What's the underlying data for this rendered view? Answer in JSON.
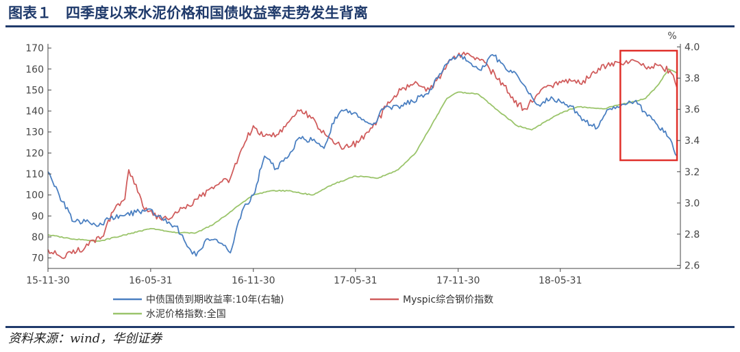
{
  "header": {
    "title": "图表１　四季度以来水泥价格和国债收益率走势发生背离"
  },
  "footer": {
    "source": "资料来源：wind，华创证券"
  },
  "chart_data": {
    "type": "line",
    "title": "",
    "x_ticks": [
      "15-11-30",
      "16-05-31",
      "16-11-30",
      "17-05-31",
      "17-11-30",
      "18-05-31"
    ],
    "left_axis": {
      "ylim": [
        65,
        172
      ],
      "ticks": [
        70,
        80,
        90,
        100,
        110,
        120,
        130,
        140,
        150,
        160,
        170
      ]
    },
    "right_axis": {
      "unit": "%",
      "ylim": [
        2.58,
        4.02
      ],
      "ticks": [
        "2.6",
        "2.8",
        "3.0",
        "3.2",
        "3.4",
        "3.6",
        "3.8",
        "4.0"
      ]
    },
    "legend_placement": "bottom",
    "grid": false,
    "highlight_box": {
      "color": "#e0302a",
      "x_range": [
        "2018-09-15",
        "2018-12-25"
      ]
    },
    "series": [
      {
        "name": "中债国债到期收益率:10年(右轴)",
        "axis": "right",
        "color": "#4a7fc1",
        "points": [
          [
            "2015-11-30",
            3.2
          ],
          [
            "2015-12-20",
            3.05
          ],
          [
            "2016-01-15",
            2.88
          ],
          [
            "2016-02-05",
            2.88
          ],
          [
            "2016-02-25",
            2.85
          ],
          [
            "2016-03-20",
            2.9
          ],
          [
            "2016-04-15",
            2.92
          ],
          [
            "2016-05-05",
            2.94
          ],
          [
            "2016-05-31",
            2.96
          ],
          [
            "2016-06-20",
            2.9
          ],
          [
            "2016-07-15",
            2.85
          ],
          [
            "2016-08-10",
            2.7
          ],
          [
            "2016-08-20",
            2.66
          ],
          [
            "2016-09-10",
            2.77
          ],
          [
            "2016-10-05",
            2.74
          ],
          [
            "2016-10-20",
            2.68
          ],
          [
            "2016-11-10",
            2.95
          ],
          [
            "2016-11-30",
            3.05
          ],
          [
            "2016-12-20",
            3.3
          ],
          [
            "2017-01-10",
            3.22
          ],
          [
            "2017-02-01",
            3.3
          ],
          [
            "2017-02-20",
            3.42
          ],
          [
            "2017-03-15",
            3.4
          ],
          [
            "2017-04-05",
            3.35
          ],
          [
            "2017-04-25",
            3.55
          ],
          [
            "2017-05-15",
            3.6
          ],
          [
            "2017-06-05",
            3.55
          ],
          [
            "2017-06-30",
            3.5
          ],
          [
            "2017-07-20",
            3.6
          ],
          [
            "2017-08-15",
            3.62
          ],
          [
            "2017-09-10",
            3.65
          ],
          [
            "2017-10-05",
            3.7
          ],
          [
            "2017-10-25",
            3.8
          ],
          [
            "2017-11-15",
            3.92
          ],
          [
            "2017-11-30",
            3.95
          ],
          [
            "2017-12-20",
            3.9
          ],
          [
            "2018-01-10",
            3.85
          ],
          [
            "2018-01-30",
            3.95
          ],
          [
            "2018-02-20",
            3.88
          ],
          [
            "2018-03-15",
            3.82
          ],
          [
            "2018-04-05",
            3.7
          ],
          [
            "2018-04-25",
            3.62
          ],
          [
            "2018-05-15",
            3.68
          ],
          [
            "2018-05-31",
            3.65
          ],
          [
            "2018-06-20",
            3.62
          ],
          [
            "2018-07-15",
            3.52
          ],
          [
            "2018-08-05",
            3.48
          ],
          [
            "2018-08-25",
            3.6
          ],
          [
            "2018-09-15",
            3.62
          ],
          [
            "2018-10-10",
            3.65
          ],
          [
            "2018-10-30",
            3.58
          ],
          [
            "2018-11-20",
            3.5
          ],
          [
            "2018-12-10",
            3.42
          ],
          [
            "2018-12-25",
            3.3
          ]
        ]
      },
      {
        "name": "Myspic综合钢价指数",
        "axis": "left",
        "color": "#d05c5c",
        "points": [
          [
            "2015-11-30",
            74
          ],
          [
            "2015-12-25",
            70
          ],
          [
            "2016-01-20",
            73
          ],
          [
            "2016-02-10",
            76
          ],
          [
            "2016-03-05",
            80
          ],
          [
            "2016-03-25",
            92
          ],
          [
            "2016-04-15",
            98
          ],
          [
            "2016-04-22",
            112
          ],
          [
            "2016-05-05",
            105
          ],
          [
            "2016-05-20",
            93
          ],
          [
            "2016-06-20",
            88
          ],
          [
            "2016-07-20",
            92
          ],
          [
            "2016-08-20",
            98
          ],
          [
            "2016-09-20",
            103
          ],
          [
            "2016-10-20",
            108
          ],
          [
            "2016-11-15",
            125
          ],
          [
            "2016-11-30",
            133
          ],
          [
            "2016-12-20",
            128
          ],
          [
            "2017-01-20",
            130
          ],
          [
            "2017-02-20",
            140
          ],
          [
            "2017-03-10",
            138
          ],
          [
            "2017-04-10",
            128
          ],
          [
            "2017-05-10",
            122
          ],
          [
            "2017-06-05",
            125
          ],
          [
            "2017-06-30",
            132
          ],
          [
            "2017-07-25",
            142
          ],
          [
            "2017-08-20",
            150
          ],
          [
            "2017-09-15",
            154
          ],
          [
            "2017-10-10",
            150
          ],
          [
            "2017-11-01",
            158
          ],
          [
            "2017-11-20",
            165
          ],
          [
            "2017-12-10",
            168
          ],
          [
            "2018-01-05",
            165
          ],
          [
            "2018-01-25",
            160
          ],
          [
            "2018-02-20",
            152
          ],
          [
            "2018-03-10",
            144
          ],
          [
            "2018-03-30",
            141
          ],
          [
            "2018-04-20",
            148
          ],
          [
            "2018-05-15",
            152
          ],
          [
            "2018-06-10",
            155
          ],
          [
            "2018-07-05",
            153
          ],
          [
            "2018-08-01",
            158
          ],
          [
            "2018-08-25",
            163
          ],
          [
            "2018-09-20",
            162
          ],
          [
            "2018-10-10",
            164
          ],
          [
            "2018-11-01",
            160
          ],
          [
            "2018-11-25",
            162
          ],
          [
            "2018-12-15",
            158
          ],
          [
            "2018-12-25",
            151
          ]
        ]
      },
      {
        "name": "水泥价格指数:全国",
        "axis": "left",
        "color": "#9ac46a",
        "points": [
          [
            "2015-11-30",
            81
          ],
          [
            "2016-01-15",
            79
          ],
          [
            "2016-03-01",
            78
          ],
          [
            "2016-04-15",
            81
          ],
          [
            "2016-05-31",
            84
          ],
          [
            "2016-07-15",
            82
          ],
          [
            "2016-08-20",
            82
          ],
          [
            "2016-09-20",
            86
          ],
          [
            "2016-10-20",
            92
          ],
          [
            "2016-11-30",
            100
          ],
          [
            "2016-12-31",
            102
          ],
          [
            "2017-01-31",
            102
          ],
          [
            "2017-03-15",
            100
          ],
          [
            "2017-04-20",
            105
          ],
          [
            "2017-05-31",
            109
          ],
          [
            "2017-07-10",
            108
          ],
          [
            "2017-08-15",
            112
          ],
          [
            "2017-09-15",
            120
          ],
          [
            "2017-10-15",
            134
          ],
          [
            "2017-11-10",
            146
          ],
          [
            "2017-11-30",
            149
          ],
          [
            "2018-01-05",
            148
          ],
          [
            "2018-02-10",
            140
          ],
          [
            "2018-03-15",
            133
          ],
          [
            "2018-04-10",
            131
          ],
          [
            "2018-05-05",
            135
          ],
          [
            "2018-05-31",
            139
          ],
          [
            "2018-07-01",
            142
          ],
          [
            "2018-08-15",
            141
          ],
          [
            "2018-10-01",
            144
          ],
          [
            "2018-10-30",
            146
          ],
          [
            "2018-11-20",
            152
          ],
          [
            "2018-12-10",
            160
          ],
          [
            "2018-12-25",
            158
          ]
        ]
      }
    ]
  }
}
